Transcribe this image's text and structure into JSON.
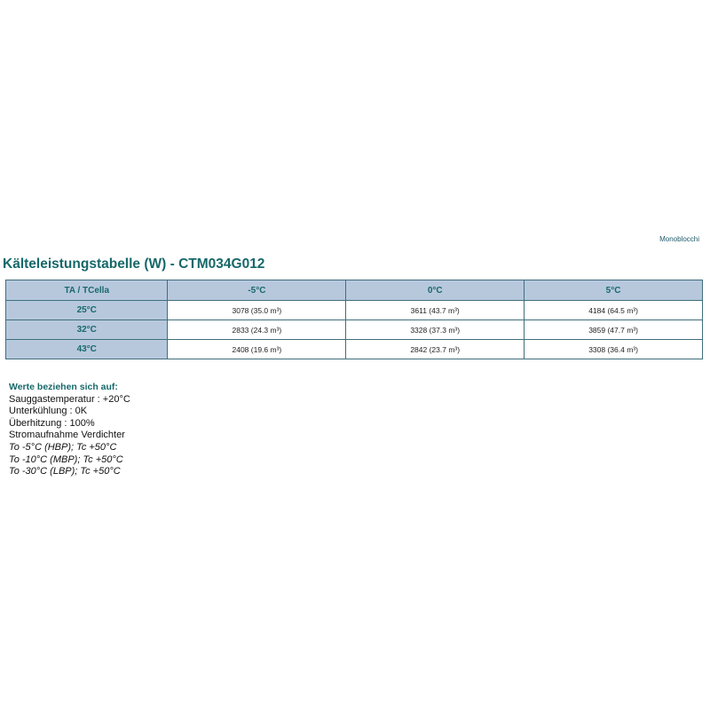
{
  "brand": "Monoblocchi",
  "title": "Kälteleistungstabelle (W) - CTM034G012",
  "table": {
    "corner": "TA / TCella",
    "columns": [
      "-5°C",
      "0°C",
      "5°C"
    ],
    "rows": [
      {
        "label": "25°C",
        "values": [
          "3078 (35.0 m³)",
          "3611 (43.7 m³)",
          "4184 (64.5 m³)"
        ]
      },
      {
        "label": "32°C",
        "values": [
          "2833 (24.3 m³)",
          "3328 (37.3 m³)",
          "3859 (47.7 m³)"
        ]
      },
      {
        "label": "43°C",
        "values": [
          "2408 (19.6 m³)",
          "2842 (23.7 m³)",
          "3308 (36.4 m³)"
        ]
      }
    ]
  },
  "notes": {
    "heading": "Werte beziehen sich auf:",
    "lines": [
      "Sauggastemperatur : +20°C",
      "Unterkühlung : 0K",
      "Überhitzung : 100%",
      "Stromaufnahme Verdichter"
    ],
    "italic_lines": [
      "To -5°C (HBP); Tc +50°C",
      "To -10°C (MBP); Tc +50°C",
      "To -30°C (LBP); Tc +50°C"
    ]
  }
}
